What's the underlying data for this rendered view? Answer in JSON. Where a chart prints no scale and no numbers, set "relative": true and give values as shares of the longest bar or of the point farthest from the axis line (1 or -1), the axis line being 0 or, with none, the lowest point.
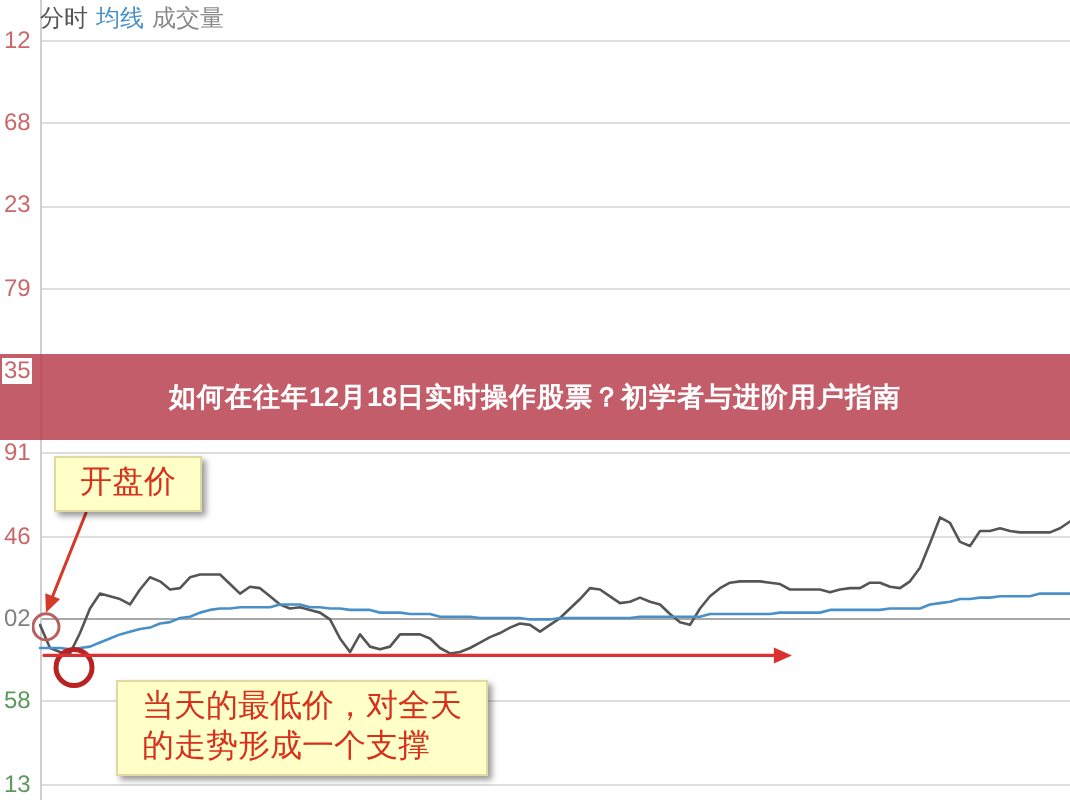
{
  "chart_data": {
    "type": "line",
    "relative": true,
    "title": "如何在往年12月18日实时操作股票？初学者与进阶用户指南",
    "categories": [
      null,
      null,
      null,
      null,
      null,
      null,
      null,
      null,
      null,
      null,
      null,
      null,
      null,
      null,
      null,
      null,
      null,
      null,
      null,
      null,
      null,
      null,
      null,
      null,
      null,
      null,
      null,
      null,
      null,
      null,
      null,
      null,
      null,
      null,
      null,
      null,
      null,
      null,
      null,
      null,
      null,
      null,
      null,
      null,
      null,
      null,
      null,
      null,
      null,
      null,
      null,
      null,
      null,
      null,
      null,
      null,
      null,
      null,
      null,
      null,
      null,
      null,
      null,
      null,
      null,
      null,
      null,
      null,
      null,
      null,
      null,
      null,
      null,
      null,
      null,
      null,
      null,
      null,
      null,
      null,
      null,
      null,
      null,
      null,
      null,
      null,
      null,
      null,
      null,
      null,
      null,
      null,
      null,
      null,
      null,
      null,
      null,
      null,
      null,
      null,
      null,
      null,
      null,
      null
    ],
    "series": [
      {
        "name": "分时",
        "color": "#555555",
        "values": [
          0.21,
          0.04,
          0.01,
          0,
          0.15,
          0.33,
          0.44,
          0.42,
          0.4,
          0.36,
          0.47,
          0.56,
          0.53,
          0.47,
          0.48,
          0.56,
          0.58,
          0.58,
          0.58,
          0.51,
          0.44,
          0.49,
          0.48,
          0.42,
          0.36,
          0.33,
          0.34,
          0.32,
          0.3,
          0.25,
          0.11,
          0.01,
          0.14,
          0.05,
          0.03,
          0.05,
          0.14,
          0.14,
          0.14,
          0.11,
          0.04,
          0,
          0.01,
          0.04,
          0.08,
          0.12,
          0.15,
          0.19,
          0.22,
          0.21,
          0.16,
          0.21,
          0.26,
          0.33,
          0.4,
          0.48,
          0.47,
          0.42,
          0.37,
          0.38,
          0.41,
          0.38,
          0.36,
          0.29,
          0.23,
          0.21,
          0.33,
          0.42,
          0.48,
          0.52,
          0.53,
          0.53,
          0.53,
          0.52,
          0.51,
          0.47,
          0.47,
          0.47,
          0.47,
          0.45,
          0.47,
          0.48,
          0.48,
          0.52,
          0.52,
          0.49,
          0.48,
          0.53,
          0.63,
          0.81,
          1,
          0.96,
          0.82,
          0.79,
          0.9,
          0.9,
          0.92,
          0.9,
          0.89,
          0.89,
          0.89,
          0.89,
          0.92,
          0.97
        ]
      },
      {
        "name": "均线",
        "color": "#4a90c8",
        "values": [
          0.04,
          0.04,
          0.04,
          0.03,
          0.04,
          0.05,
          0.08,
          0.11,
          0.14,
          0.16,
          0.18,
          0.19,
          0.22,
          0.23,
          0.26,
          0.27,
          0.3,
          0.32,
          0.33,
          0.33,
          0.34,
          0.34,
          0.34,
          0.34,
          0.36,
          0.36,
          0.36,
          0.34,
          0.34,
          0.33,
          0.33,
          0.32,
          0.32,
          0.32,
          0.3,
          0.3,
          0.3,
          0.29,
          0.29,
          0.29,
          0.27,
          0.27,
          0.27,
          0.27,
          0.26,
          0.26,
          0.26,
          0.26,
          0.26,
          0.25,
          0.25,
          0.25,
          0.26,
          0.26,
          0.26,
          0.26,
          0.26,
          0.26,
          0.26,
          0.26,
          0.27,
          0.27,
          0.27,
          0.27,
          0.27,
          0.27,
          0.27,
          0.29,
          0.29,
          0.29,
          0.29,
          0.29,
          0.29,
          0.29,
          0.3,
          0.3,
          0.3,
          0.3,
          0.3,
          0.32,
          0.32,
          0.32,
          0.32,
          0.32,
          0.32,
          0.33,
          0.33,
          0.33,
          0.33,
          0.36,
          0.37,
          0.38,
          0.4,
          0.4,
          0.41,
          0.41,
          0.42,
          0.42,
          0.42,
          0.42,
          0.44,
          0.44,
          0.44,
          0.44
        ]
      }
    ],
    "ref_lines": [
      {
        "axis": "y",
        "value": 4.51,
        "color": "#dedede"
      },
      {
        "axis": "y",
        "value": 3.9,
        "color": "#dedede"
      },
      {
        "axis": "y",
        "value": 3.29,
        "color": "#dedede"
      },
      {
        "axis": "y",
        "value": 2.68,
        "color": "#dedede"
      },
      {
        "axis": "y",
        "value": 1.48,
        "color": "#dedede"
      },
      {
        "axis": "y",
        "value": 0.86,
        "color": "#dedede"
      },
      {
        "axis": "y",
        "value": 0.26,
        "color": "#a8a8a8"
      },
      {
        "axis": "y",
        "value": -0.34,
        "color": "#dedede"
      },
      {
        "axis": "y",
        "value": -0.96,
        "color": "#dedede"
      }
    ],
    "annotations": [
      "成交量",
      "12",
      "68",
      "23",
      "79",
      "35",
      "91",
      "46",
      "02",
      "58",
      "13",
      "开盘价",
      "当天的最低价，对全天的走势形成一个支撑"
    ],
    "legend": "top left",
    "tick_labels": false,
    "marker": "none",
    "line_style": "solid"
  }
}
